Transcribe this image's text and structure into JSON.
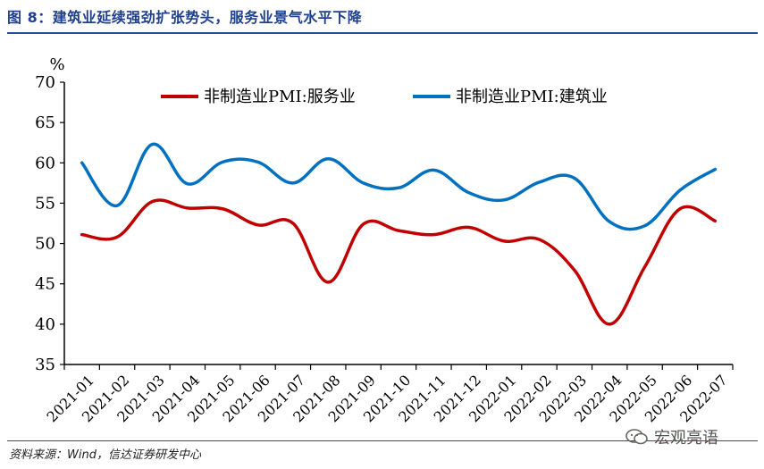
{
  "header": {
    "title": "图 8：建筑业延续强劲扩张势头，服务业景气水平下降"
  },
  "footer": {
    "source": "资料来源：Wind，信达证券研发中心",
    "watermark": "宏观亮语",
    "watermark_icon": "wechat-icon"
  },
  "chart_data": {
    "type": "line",
    "ylabel": "%",
    "ylim": [
      35,
      70
    ],
    "yticks": [
      35,
      40,
      45,
      50,
      55,
      60,
      65,
      70
    ],
    "legend_position": "top",
    "grid": false,
    "x": [
      "2021-01",
      "2021-02",
      "2021-03",
      "2021-04",
      "2021-05",
      "2021-06",
      "2021-07",
      "2021-08",
      "2021-09",
      "2021-10",
      "2021-11",
      "2021-12",
      "2022-01",
      "2022-02",
      "2022-03",
      "2022-04",
      "2022-05",
      "2022-06",
      "2022-07"
    ],
    "series": [
      {
        "name": "非制造业PMI:服务业",
        "color": "#c00000",
        "values": [
          51.1,
          50.8,
          55.2,
          54.4,
          54.3,
          52.3,
          52.5,
          45.2,
          52.4,
          51.6,
          51.1,
          52.0,
          50.3,
          50.5,
          46.7,
          40.0,
          47.1,
          54.3,
          52.8
        ]
      },
      {
        "name": "非制造业PMI:建筑业",
        "color": "#0070c0",
        "values": [
          60.0,
          54.7,
          62.3,
          57.4,
          60.1,
          60.1,
          57.5,
          60.5,
          57.5,
          56.9,
          59.1,
          56.3,
          55.4,
          57.6,
          58.1,
          52.7,
          52.2,
          56.6,
          59.2
        ]
      }
    ]
  }
}
